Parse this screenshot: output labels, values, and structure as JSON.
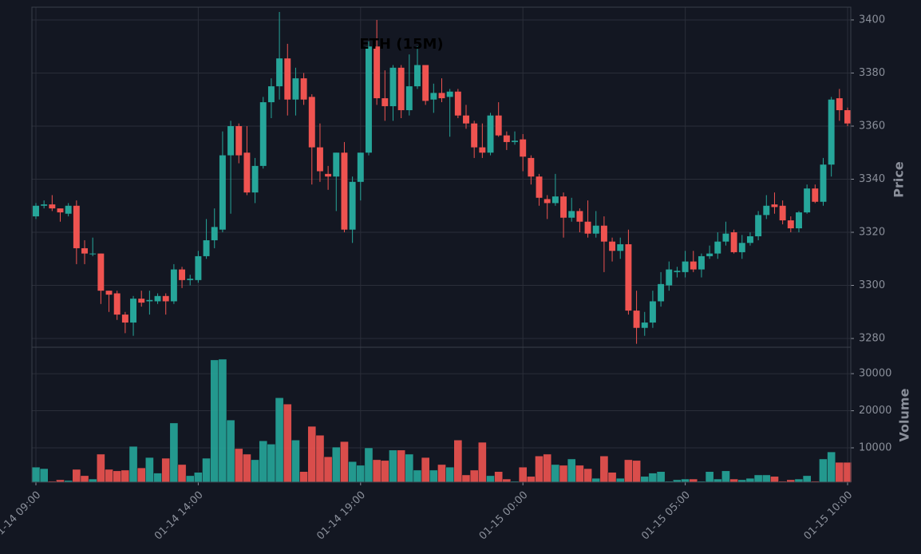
{
  "chart_data": {
    "type": "candlestick",
    "title": "ETH (15M)",
    "y_label": "Price",
    "y2_label": "Volume",
    "categories": [
      "01-14 09:00",
      null,
      null,
      null,
      null,
      null,
      null,
      null,
      null,
      null,
      null,
      null,
      null,
      null,
      null,
      null,
      null,
      null,
      null,
      null,
      "01-14 14:00",
      null,
      null,
      null,
      null,
      null,
      null,
      null,
      null,
      null,
      null,
      null,
      null,
      null,
      null,
      null,
      null,
      null,
      null,
      null,
      "01-14 19:00",
      null,
      null,
      null,
      null,
      null,
      null,
      null,
      null,
      null,
      null,
      null,
      null,
      null,
      null,
      null,
      null,
      null,
      null,
      null,
      "01-15 00:00",
      null,
      null,
      null,
      null,
      null,
      null,
      null,
      null,
      null,
      null,
      null,
      null,
      null,
      null,
      null,
      null,
      null,
      null,
      null,
      "01-15 05:00",
      null,
      null,
      null,
      null,
      null,
      null,
      null,
      null,
      null,
      null,
      null,
      null,
      null,
      null,
      null,
      null,
      null,
      null,
      null,
      "01-15 10:00"
    ],
    "open": [
      3326,
      3330,
      3330.5,
      3329,
      3327,
      3330,
      3314,
      3312,
      3312,
      3298,
      3297,
      3289,
      3286,
      3295,
      3294,
      3294,
      3296,
      3294,
      3306,
      3302,
      3302,
      3311,
      3317,
      3321,
      3349,
      3360,
      3350,
      3335,
      3345,
      3369,
      3375,
      3385.5,
      3370,
      3378,
      3371,
      3352,
      3342,
      3341,
      3350,
      3321,
      3339,
      3350,
      3390,
      3370.5,
      3367.5,
      3382,
      3366,
      3375,
      3383,
      3370,
      3372.5,
      3371,
      3373,
      3364,
      3361,
      3352,
      3350,
      3364,
      3356.5,
      3354,
      3355,
      3348,
      3341,
      3332.5,
      3331,
      3333.5,
      3325.5,
      3328,
      3324,
      3319.5,
      3322.5,
      3316.5,
      3313,
      3315.5,
      3290.5,
      3284,
      3286,
      3294,
      3300,
      3305,
      3305,
      3309,
      3306,
      3311,
      3312,
      3316.5,
      3320,
      3312.5,
      3316,
      3318.5,
      3326.5,
      3330.5,
      3330,
      3324.5,
      3321.5,
      3327.5,
      3336.5,
      3331.5,
      3345.5,
      3370.5,
      3366
    ],
    "high": [
      3331,
      3332,
      3334,
      3329,
      3331,
      3332,
      3317,
      3318,
      3312,
      3298,
      3298,
      3290,
      3296,
      3298,
      3298,
      3297,
      3297,
      3308,
      3307,
      3304,
      3313,
      3325,
      3329,
      3358,
      3362,
      3361,
      3360,
      3348,
      3371,
      3378,
      3403,
      3391,
      3382,
      3380,
      3372,
      3361,
      3345,
      3350,
      3354,
      3341,
      3350,
      3392,
      3400,
      3381,
      3383,
      3383,
      3387,
      3390,
      3383,
      3376,
      3378,
      3374,
      3374,
      3368,
      3362,
      3361,
      3365,
      3369,
      3358,
      3358,
      3357,
      3349,
      3342,
      3334,
      3342,
      3335,
      3333,
      3329,
      3332,
      3328,
      3326,
      3318,
      3318,
      3321,
      3298,
      3290,
      3298,
      3305,
      3309,
      3307,
      3313,
      3313,
      3312,
      3315,
      3320,
      3324,
      3321,
      3319,
      3320,
      3328,
      3334,
      3335,
      3332,
      3326,
      3328,
      3338,
      3338,
      3348,
      3371,
      3374,
      3367
    ],
    "low": [
      3325,
      3329,
      3328,
      3324,
      3326,
      3308,
      3308,
      3311,
      3293,
      3290,
      3287,
      3282,
      3281,
      3292,
      3289,
      3293,
      3289,
      3293,
      3299,
      3300,
      3301,
      3310,
      3314,
      3320,
      3327,
      3346,
      3334,
      3331,
      3344,
      3363,
      3370,
      3364,
      3364,
      3368,
      3338,
      3339,
      3336,
      3328,
      3320,
      3316,
      3332,
      3349,
      3368,
      3362,
      3362,
      3363,
      3364,
      3374,
      3368,
      3365,
      3369,
      3356,
      3363,
      3359,
      3348,
      3348,
      3349,
      3356,
      3351,
      3353,
      3343,
      3338,
      3330,
      3325,
      3330,
      3318,
      3324,
      3320,
      3318,
      3318,
      3305,
      3309,
      3310,
      3289,
      3278,
      3281,
      3284,
      3292,
      3298,
      3303,
      3303,
      3305,
      3303,
      3310,
      3310,
      3315,
      3312,
      3310,
      3315,
      3317,
      3325,
      3327,
      3323,
      3320,
      3320,
      3327,
      3331,
      3330,
      3341,
      3362,
      3360
    ],
    "close": [
      3330,
      3330.5,
      3329,
      3327.5,
      3330,
      3314,
      3312,
      3312,
      3298,
      3296.5,
      3289,
      3286,
      3295,
      3293.5,
      3294.5,
      3296,
      3294,
      3306,
      3302,
      3302.5,
      3311,
      3317,
      3322,
      3349,
      3360,
      3349,
      3335,
      3345,
      3369,
      3375,
      3385.5,
      3370,
      3378,
      3370,
      3352,
      3343,
      3341,
      3350,
      3321,
      3339,
      3350,
      3390,
      3370.5,
      3367.5,
      3382,
      3366,
      3375,
      3383,
      3369.5,
      3372.5,
      3370.5,
      3373,
      3364,
      3361,
      3352,
      3350,
      3364,
      3356.5,
      3354,
      3354.5,
      3348.5,
      3341,
      3333,
      3331,
      3333.5,
      3325.5,
      3328,
      3324,
      3319.5,
      3322.5,
      3316.5,
      3313,
      3315.5,
      3290.5,
      3284,
      3286,
      3294,
      3300.5,
      3306,
      3305.5,
      3309,
      3306,
      3311,
      3312,
      3316.5,
      3319.5,
      3312.5,
      3316,
      3318.5,
      3326.5,
      3330,
      3329.5,
      3324.5,
      3321.5,
      3327.5,
      3336.5,
      3331.5,
      3345.5,
      3370,
      3366,
      3361
    ],
    "volume": [
      4800,
      4400,
      1000,
      1400,
      1200,
      4200,
      2500,
      1600,
      8300,
      4200,
      3800,
      4000,
      10400,
      4600,
      7400,
      3200,
      7200,
      16700,
      5500,
      2500,
      3400,
      7200,
      33700,
      33900,
      17500,
      9800,
      8300,
      6800,
      11900,
      11000,
      23500,
      21800,
      12100,
      3600,
      15800,
      13400,
      7600,
      10200,
      11700,
      6300,
      5300,
      10000,
      6800,
      6600,
      9400,
      9400,
      8300,
      4000,
      7400,
      4000,
      5500,
      4800,
      12100,
      2700,
      4000,
      11500,
      2500,
      3600,
      1600,
      1000,
      4800,
      2300,
      7800,
      8300,
      5500,
      5300,
      7000,
      5300,
      4400,
      1800,
      7800,
      3400,
      1800,
      6800,
      6600,
      2300,
      3200,
      3600,
      1000,
      1400,
      1600,
      1600,
      1000,
      3600,
      1600,
      3800,
      1600,
      1400,
      1800,
      2700,
      2700,
      2300,
      1000,
      1400,
      1600,
      2500,
      1000,
      7000,
      8900,
      6100,
      6100
    ],
    "up_color": "#26a69a",
    "down_color": "#ef5350",
    "ylim": [
      3277,
      3404.8
    ],
    "yticks": [
      3280,
      3300,
      3320,
      3340,
      3360,
      3380,
      3400
    ],
    "y2lim": [
      750,
      36900
    ],
    "y2ticks": [
      10000,
      20000,
      30000
    ],
    "grid": true
  }
}
